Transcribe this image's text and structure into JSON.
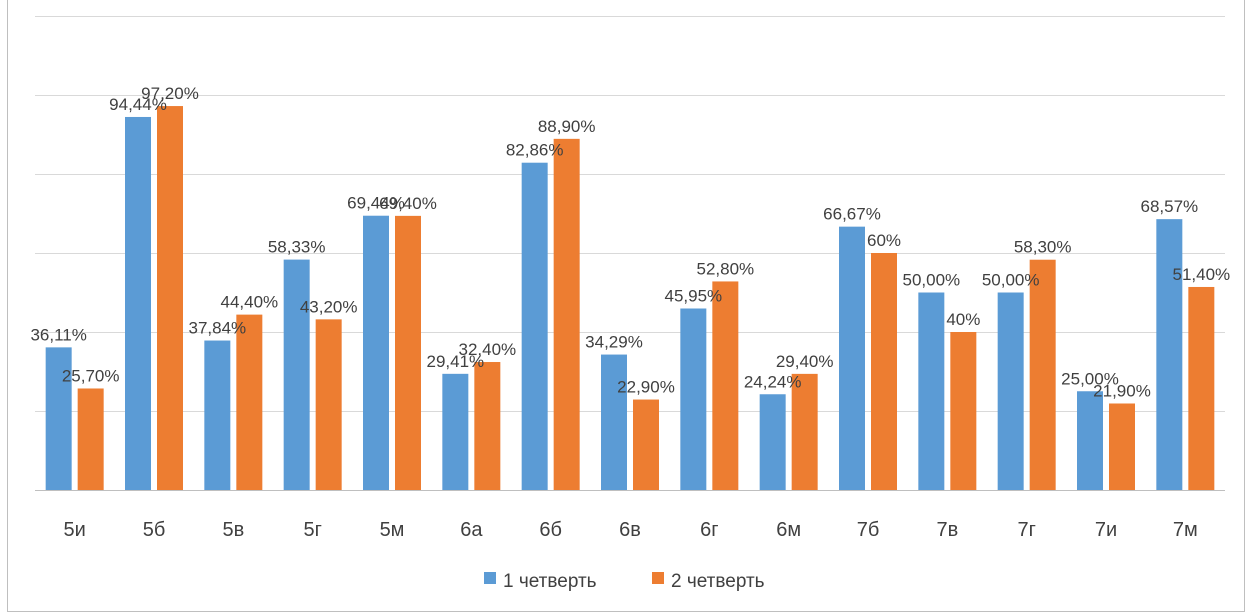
{
  "chart_data": {
    "type": "bar",
    "categories": [
      "5и",
      "5б",
      "5в",
      "5г",
      "5м",
      "6а",
      "6б",
      "6в",
      "6г",
      "6м",
      "7б",
      "7в",
      "7г",
      "7и",
      "7м"
    ],
    "series": [
      {
        "name": "1 четверть",
        "color": "#5b9bd5",
        "values": [
          36.11,
          94.44,
          37.84,
          58.33,
          69.44,
          29.41,
          82.86,
          34.29,
          45.95,
          24.24,
          66.67,
          50.0,
          50.0,
          25.0,
          68.57
        ],
        "labels": [
          "36,11%",
          "94,44%",
          "37,84%",
          "58,33%",
          "69,44%",
          "29,41%",
          "82,86%",
          "34,29%",
          "45,95%",
          "24,24%",
          "66,67%",
          "50,00%",
          "50,00%",
          "25,00%",
          "68,57%"
        ]
      },
      {
        "name": "2 четверть",
        "color": "#ed7d31",
        "values": [
          25.7,
          97.2,
          44.4,
          43.2,
          69.4,
          32.4,
          88.9,
          22.9,
          52.8,
          29.4,
          60,
          40,
          58.3,
          21.9,
          51.4
        ],
        "labels": [
          "25,70%",
          "97,20%",
          "44,40%",
          "43,20%",
          "69,40%",
          "32,40%",
          "88,90%",
          "22,90%",
          "52,80%",
          "29,40%",
          "60%",
          "40%",
          "58,30%",
          "21,90%",
          "51,40%"
        ]
      }
    ],
    "ylim": [
      0,
      120
    ],
    "y_gridline_step": 20,
    "grid": true,
    "legend_position": "bottom",
    "title": "",
    "xlabel": "",
    "ylabel": ""
  }
}
